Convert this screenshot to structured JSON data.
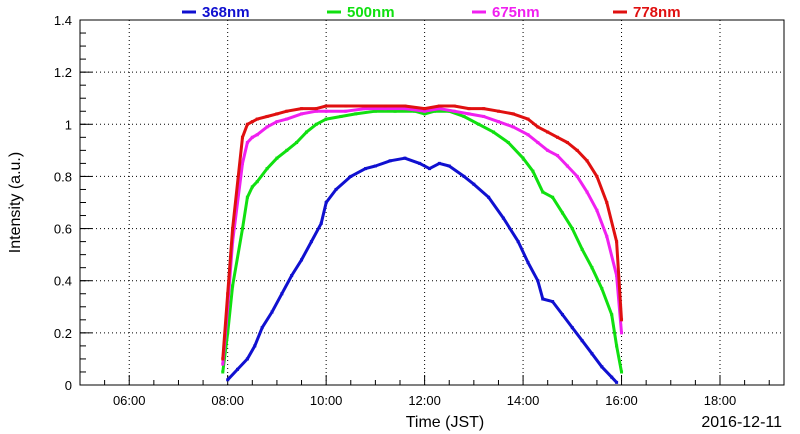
{
  "chart_data": {
    "type": "scatter",
    "title": "",
    "xlabel": "Time (JST)",
    "ylabel": "Intensity (a.u.)",
    "date_label": "2016-12-11",
    "x_unit": "hours (JST)",
    "xlim": [
      5.0,
      19.3
    ],
    "ylim": [
      0,
      1.4
    ],
    "x_ticks": [
      {
        "value": 6,
        "label": "06:00"
      },
      {
        "value": 8,
        "label": "08:00"
      },
      {
        "value": 10,
        "label": "10:00"
      },
      {
        "value": 12,
        "label": "12:00"
      },
      {
        "value": 14,
        "label": "14:00"
      },
      {
        "value": 16,
        "label": "16:00"
      },
      {
        "value": 18,
        "label": "18:00"
      }
    ],
    "y_ticks": [
      {
        "value": 0,
        "label": "0"
      },
      {
        "value": 0.2,
        "label": "0.2"
      },
      {
        "value": 0.4,
        "label": "0.4"
      },
      {
        "value": 0.6,
        "label": "0.6"
      },
      {
        "value": 0.8,
        "label": "0.8"
      },
      {
        "value": 1.0,
        "label": "1"
      },
      {
        "value": 1.2,
        "label": "1.2"
      },
      {
        "value": 1.4,
        "label": "1.4"
      }
    ],
    "grid": true,
    "legend_position": "top",
    "series": [
      {
        "name": "368nm",
        "color": "#1010d0",
        "points": [
          [
            8.0,
            0.02
          ],
          [
            8.2,
            0.06
          ],
          [
            8.4,
            0.1
          ],
          [
            8.55,
            0.15
          ],
          [
            8.7,
            0.22
          ],
          [
            8.9,
            0.28
          ],
          [
            9.1,
            0.35
          ],
          [
            9.3,
            0.42
          ],
          [
            9.5,
            0.48
          ],
          [
            9.7,
            0.55
          ],
          [
            9.9,
            0.62
          ],
          [
            10.0,
            0.7
          ],
          [
            10.2,
            0.75
          ],
          [
            10.5,
            0.8
          ],
          [
            10.8,
            0.83
          ],
          [
            11.0,
            0.84
          ],
          [
            11.3,
            0.86
          ],
          [
            11.6,
            0.87
          ],
          [
            11.9,
            0.85
          ],
          [
            12.1,
            0.83
          ],
          [
            12.3,
            0.85
          ],
          [
            12.5,
            0.84
          ],
          [
            12.8,
            0.8
          ],
          [
            13.0,
            0.77
          ],
          [
            13.3,
            0.72
          ],
          [
            13.6,
            0.64
          ],
          [
            13.9,
            0.55
          ],
          [
            14.1,
            0.47
          ],
          [
            14.3,
            0.4
          ],
          [
            14.4,
            0.33
          ],
          [
            14.6,
            0.32
          ],
          [
            14.8,
            0.27
          ],
          [
            15.0,
            0.22
          ],
          [
            15.2,
            0.17
          ],
          [
            15.4,
            0.12
          ],
          [
            15.6,
            0.07
          ],
          [
            15.8,
            0.03
          ],
          [
            15.9,
            0.01
          ]
        ]
      },
      {
        "name": "500nm",
        "color": "#10e010",
        "points": [
          [
            7.9,
            0.05
          ],
          [
            8.0,
            0.2
          ],
          [
            8.1,
            0.38
          ],
          [
            8.3,
            0.6
          ],
          [
            8.4,
            0.72
          ],
          [
            8.5,
            0.76
          ],
          [
            8.6,
            0.78
          ],
          [
            8.8,
            0.83
          ],
          [
            9.0,
            0.87
          ],
          [
            9.2,
            0.9
          ],
          [
            9.4,
            0.93
          ],
          [
            9.6,
            0.97
          ],
          [
            9.8,
            1.0
          ],
          [
            10.0,
            1.02
          ],
          [
            10.3,
            1.03
          ],
          [
            10.6,
            1.04
          ],
          [
            11.0,
            1.05
          ],
          [
            11.4,
            1.05
          ],
          [
            11.8,
            1.05
          ],
          [
            12.0,
            1.04
          ],
          [
            12.2,
            1.05
          ],
          [
            12.5,
            1.05
          ],
          [
            12.8,
            1.03
          ],
          [
            13.1,
            1.0
          ],
          [
            13.4,
            0.97
          ],
          [
            13.7,
            0.93
          ],
          [
            14.0,
            0.87
          ],
          [
            14.2,
            0.82
          ],
          [
            14.4,
            0.74
          ],
          [
            14.6,
            0.72
          ],
          [
            14.8,
            0.66
          ],
          [
            15.0,
            0.6
          ],
          [
            15.2,
            0.52
          ],
          [
            15.4,
            0.45
          ],
          [
            15.6,
            0.37
          ],
          [
            15.8,
            0.27
          ],
          [
            15.9,
            0.15
          ],
          [
            16.0,
            0.05
          ]
        ]
      },
      {
        "name": "675nm",
        "color": "#f020f0",
        "points": [
          [
            7.9,
            0.08
          ],
          [
            8.0,
            0.3
          ],
          [
            8.1,
            0.55
          ],
          [
            8.3,
            0.85
          ],
          [
            8.4,
            0.93
          ],
          [
            8.5,
            0.95
          ],
          [
            8.6,
            0.96
          ],
          [
            8.8,
            0.99
          ],
          [
            9.0,
            1.01
          ],
          [
            9.2,
            1.02
          ],
          [
            9.5,
            1.04
          ],
          [
            9.8,
            1.05
          ],
          [
            10.0,
            1.05
          ],
          [
            10.4,
            1.05
          ],
          [
            10.8,
            1.06
          ],
          [
            11.2,
            1.06
          ],
          [
            11.6,
            1.06
          ],
          [
            12.0,
            1.05
          ],
          [
            12.3,
            1.06
          ],
          [
            12.6,
            1.05
          ],
          [
            12.9,
            1.04
          ],
          [
            13.2,
            1.03
          ],
          [
            13.5,
            1.01
          ],
          [
            13.8,
            0.99
          ],
          [
            14.1,
            0.96
          ],
          [
            14.3,
            0.93
          ],
          [
            14.5,
            0.9
          ],
          [
            14.7,
            0.88
          ],
          [
            14.9,
            0.84
          ],
          [
            15.1,
            0.8
          ],
          [
            15.3,
            0.74
          ],
          [
            15.5,
            0.67
          ],
          [
            15.7,
            0.57
          ],
          [
            15.9,
            0.42
          ],
          [
            16.0,
            0.2
          ]
        ]
      },
      {
        "name": "778nm",
        "color": "#e01010",
        "points": [
          [
            7.9,
            0.1
          ],
          [
            8.0,
            0.35
          ],
          [
            8.1,
            0.6
          ],
          [
            8.3,
            0.95
          ],
          [
            8.4,
            1.0
          ],
          [
            8.5,
            1.01
          ],
          [
            8.6,
            1.02
          ],
          [
            8.8,
            1.03
          ],
          [
            9.0,
            1.04
          ],
          [
            9.2,
            1.05
          ],
          [
            9.5,
            1.06
          ],
          [
            9.8,
            1.06
          ],
          [
            10.0,
            1.07
          ],
          [
            10.4,
            1.07
          ],
          [
            10.8,
            1.07
          ],
          [
            11.2,
            1.07
          ],
          [
            11.6,
            1.07
          ],
          [
            12.0,
            1.06
          ],
          [
            12.3,
            1.07
          ],
          [
            12.6,
            1.07
          ],
          [
            12.9,
            1.06
          ],
          [
            13.2,
            1.06
          ],
          [
            13.5,
            1.05
          ],
          [
            13.8,
            1.04
          ],
          [
            14.1,
            1.02
          ],
          [
            14.3,
            0.99
          ],
          [
            14.5,
            0.97
          ],
          [
            14.7,
            0.95
          ],
          [
            14.9,
            0.93
          ],
          [
            15.1,
            0.9
          ],
          [
            15.3,
            0.86
          ],
          [
            15.5,
            0.8
          ],
          [
            15.7,
            0.7
          ],
          [
            15.9,
            0.55
          ],
          [
            16.0,
            0.25
          ]
        ]
      }
    ]
  }
}
